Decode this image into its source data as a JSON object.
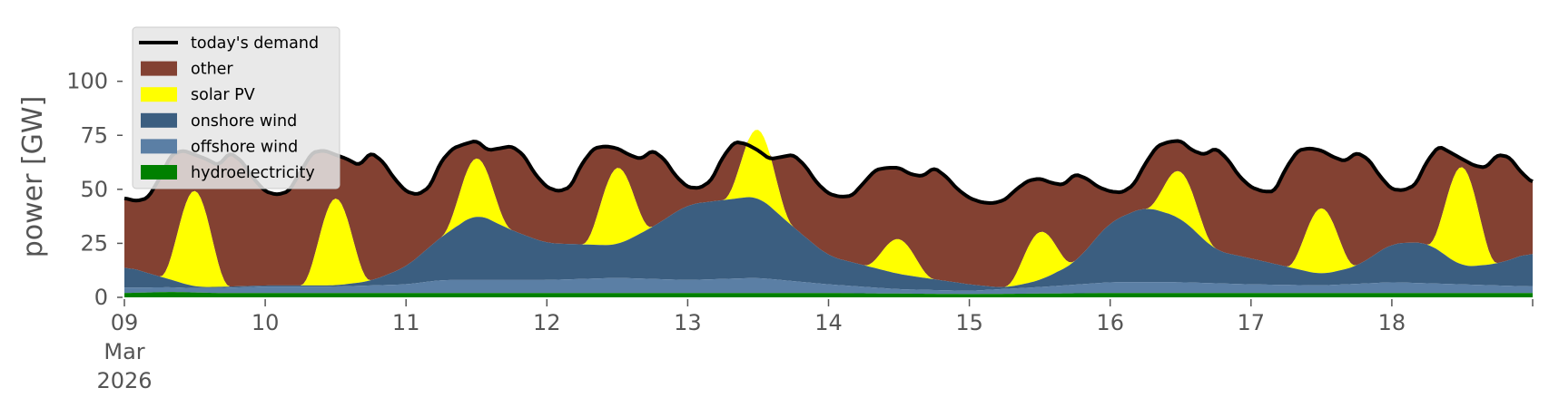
{
  "chart_data": {
    "type": "area",
    "stacked": true,
    "ylabel": "power [GW]",
    "ylim": [
      0,
      120
    ],
    "yticks": [
      0,
      25,
      50,
      75,
      100
    ],
    "xlim": [
      "2026-03-09 00:00",
      "2026-03-19 00:00"
    ],
    "xticks": [
      {
        "date": "2026-03-09",
        "label": [
          "09",
          "Mar",
          "2026"
        ]
      },
      {
        "date": "2026-03-10",
        "label": [
          "10"
        ]
      },
      {
        "date": "2026-03-11",
        "label": [
          "11"
        ]
      },
      {
        "date": "2026-03-12",
        "label": [
          "12"
        ]
      },
      {
        "date": "2026-03-13",
        "label": [
          "13"
        ]
      },
      {
        "date": "2026-03-14",
        "label": [
          "14"
        ]
      },
      {
        "date": "2026-03-15",
        "label": [
          "15"
        ]
      },
      {
        "date": "2026-03-16",
        "label": [
          "16"
        ]
      },
      {
        "date": "2026-03-17",
        "label": [
          "17"
        ]
      },
      {
        "date": "2026-03-18",
        "label": [
          "18"
        ]
      }
    ],
    "grid": false,
    "background": "#ffffff",
    "legend": {
      "placement": "top-left"
    },
    "demand": {
      "name": "today's demand",
      "color": "#000000",
      "points": [
        [
          "2026-03-09 00:00",
          46
        ],
        [
          "2026-03-09 02:00",
          44.5
        ],
        [
          "2026-03-09 04:00",
          46
        ],
        [
          "2026-03-09 06:00",
          55
        ],
        [
          "2026-03-09 08:00",
          66
        ],
        [
          "2026-03-09 10:00",
          68
        ],
        [
          "2026-03-09 12:00",
          66
        ],
        [
          "2026-03-09 14:00",
          64
        ],
        [
          "2026-03-09 16:00",
          61
        ],
        [
          "2026-03-09 18:00",
          67
        ],
        [
          "2026-03-09 20:00",
          63
        ],
        [
          "2026-03-09 22:00",
          55
        ],
        [
          "2026-03-10 00:00",
          49
        ],
        [
          "2026-03-10 02:00",
          47.5
        ],
        [
          "2026-03-10 04:00",
          49
        ],
        [
          "2026-03-10 06:00",
          58
        ],
        [
          "2026-03-10 08:00",
          67
        ],
        [
          "2026-03-10 10:00",
          68
        ],
        [
          "2026-03-10 12:00",
          66
        ],
        [
          "2026-03-10 14:00",
          64
        ],
        [
          "2026-03-10 16:00",
          61
        ],
        [
          "2026-03-10 18:00",
          67
        ],
        [
          "2026-03-10 20:00",
          63
        ],
        [
          "2026-03-10 22:00",
          55
        ],
        [
          "2026-03-11 00:00",
          49
        ],
        [
          "2026-03-11 02:00",
          47.5
        ],
        [
          "2026-03-11 04:00",
          51
        ],
        [
          "2026-03-11 06:00",
          63
        ],
        [
          "2026-03-11 08:00",
          69
        ],
        [
          "2026-03-11 10:00",
          71
        ],
        [
          "2026-03-11 12:00",
          72.5
        ],
        [
          "2026-03-11 14:00",
          68
        ],
        [
          "2026-03-11 16:00",
          69
        ],
        [
          "2026-03-11 18:00",
          70
        ],
        [
          "2026-03-11 20:00",
          66
        ],
        [
          "2026-03-11 22:00",
          57
        ],
        [
          "2026-03-12 00:00",
          51
        ],
        [
          "2026-03-12 02:00",
          49
        ],
        [
          "2026-03-12 04:00",
          51
        ],
        [
          "2026-03-12 06:00",
          62
        ],
        [
          "2026-03-12 08:00",
          69
        ],
        [
          "2026-03-12 10:00",
          70
        ],
        [
          "2026-03-12 12:00",
          69
        ],
        [
          "2026-03-12 14:00",
          66
        ],
        [
          "2026-03-12 16:00",
          64
        ],
        [
          "2026-03-12 18:00",
          68
        ],
        [
          "2026-03-12 20:00",
          64
        ],
        [
          "2026-03-12 22:00",
          56
        ],
        [
          "2026-03-13 00:00",
          51
        ],
        [
          "2026-03-13 02:00",
          50.5
        ],
        [
          "2026-03-13 04:00",
          54
        ],
        [
          "2026-03-13 06:00",
          65
        ],
        [
          "2026-03-13 08:00",
          72
        ],
        [
          "2026-03-13 10:00",
          71
        ],
        [
          "2026-03-13 12:00",
          68
        ],
        [
          "2026-03-13 14:00",
          64
        ],
        [
          "2026-03-13 16:00",
          65
        ],
        [
          "2026-03-13 18:00",
          66
        ],
        [
          "2026-03-13 20:00",
          61
        ],
        [
          "2026-03-13 22:00",
          53
        ],
        [
          "2026-03-14 00:00",
          48
        ],
        [
          "2026-03-14 02:00",
          46.5
        ],
        [
          "2026-03-14 04:00",
          47
        ],
        [
          "2026-03-14 06:00",
          53
        ],
        [
          "2026-03-14 08:00",
          59
        ],
        [
          "2026-03-14 10:00",
          60
        ],
        [
          "2026-03-14 12:00",
          60
        ],
        [
          "2026-03-14 14:00",
          57
        ],
        [
          "2026-03-14 16:00",
          56
        ],
        [
          "2026-03-14 18:00",
          60
        ],
        [
          "2026-03-14 20:00",
          56
        ],
        [
          "2026-03-14 22:00",
          50
        ],
        [
          "2026-03-15 00:00",
          46
        ],
        [
          "2026-03-15 02:00",
          44
        ],
        [
          "2026-03-15 04:00",
          43.5
        ],
        [
          "2026-03-15 06:00",
          45
        ],
        [
          "2026-03-15 08:00",
          50
        ],
        [
          "2026-03-15 10:00",
          54
        ],
        [
          "2026-03-15 12:00",
          55
        ],
        [
          "2026-03-15 14:00",
          53
        ],
        [
          "2026-03-15 16:00",
          52
        ],
        [
          "2026-03-15 18:00",
          57
        ],
        [
          "2026-03-15 20:00",
          55
        ],
        [
          "2026-03-15 22:00",
          51
        ],
        [
          "2026-03-16 00:00",
          49
        ],
        [
          "2026-03-16 02:00",
          48.5
        ],
        [
          "2026-03-16 04:00",
          52
        ],
        [
          "2026-03-16 06:00",
          62
        ],
        [
          "2026-03-16 08:00",
          70
        ],
        [
          "2026-03-16 10:00",
          72
        ],
        [
          "2026-03-16 12:00",
          72.5
        ],
        [
          "2026-03-16 14:00",
          68
        ],
        [
          "2026-03-16 16:00",
          66
        ],
        [
          "2026-03-16 18:00",
          69
        ],
        [
          "2026-03-16 20:00",
          64
        ],
        [
          "2026-03-16 22:00",
          56
        ],
        [
          "2026-03-17 00:00",
          51
        ],
        [
          "2026-03-17 02:00",
          49
        ],
        [
          "2026-03-17 04:00",
          49
        ],
        [
          "2026-03-17 06:00",
          60
        ],
        [
          "2026-03-17 08:00",
          68
        ],
        [
          "2026-03-17 10:00",
          69
        ],
        [
          "2026-03-17 12:00",
          68
        ],
        [
          "2026-03-17 14:00",
          65
        ],
        [
          "2026-03-17 16:00",
          63
        ],
        [
          "2026-03-17 18:00",
          67
        ],
        [
          "2026-03-17 20:00",
          64
        ],
        [
          "2026-03-17 22:00",
          56
        ],
        [
          "2026-03-18 00:00",
          50
        ],
        [
          "2026-03-18 02:00",
          49.5
        ],
        [
          "2026-03-18 04:00",
          52
        ],
        [
          "2026-03-18 06:00",
          63
        ],
        [
          "2026-03-18 08:00",
          70
        ],
        [
          "2026-03-18 10:00",
          67
        ],
        [
          "2026-03-18 12:00",
          64
        ],
        [
          "2026-03-18 14:00",
          61
        ],
        [
          "2026-03-18 16:00",
          60
        ],
        [
          "2026-03-18 18:00",
          66
        ],
        [
          "2026-03-18 20:00",
          65
        ],
        [
          "2026-03-18 22:00",
          58
        ],
        [
          "2026-03-19 00:00",
          53
        ]
      ]
    },
    "series": [
      {
        "name": "hydroelectricity",
        "color": "#008000",
        "points": [
          [
            "2026-03-09 00:00",
            2
          ],
          [
            "2026-03-09 08:00",
            2.5
          ],
          [
            "2026-03-09 16:00",
            2
          ],
          [
            "2026-03-10 00:00",
            2
          ],
          [
            "2026-03-11 00:00",
            2
          ],
          [
            "2026-03-12 00:00",
            2
          ],
          [
            "2026-03-13 00:00",
            2
          ],
          [
            "2026-03-14 00:00",
            2
          ],
          [
            "2026-03-15 00:00",
            1.5
          ],
          [
            "2026-03-16 00:00",
            2
          ],
          [
            "2026-03-17 00:00",
            2
          ],
          [
            "2026-03-18 00:00",
            2
          ],
          [
            "2026-03-19 00:00",
            2
          ]
        ]
      },
      {
        "name": "offshore wind",
        "color": "#5b7fa5",
        "points": [
          [
            "2026-03-09 00:00",
            2.5
          ],
          [
            "2026-03-09 12:00",
            2
          ],
          [
            "2026-03-10 00:00",
            3
          ],
          [
            "2026-03-10 12:00",
            3
          ],
          [
            "2026-03-11 00:00",
            4
          ],
          [
            "2026-03-11 06:00",
            6
          ],
          [
            "2026-03-11 12:00",
            6
          ],
          [
            "2026-03-12 00:00",
            6
          ],
          [
            "2026-03-12 12:00",
            7
          ],
          [
            "2026-03-13 00:00",
            6
          ],
          [
            "2026-03-13 12:00",
            7
          ],
          [
            "2026-03-14 00:00",
            4
          ],
          [
            "2026-03-14 12:00",
            2
          ],
          [
            "2026-03-15 00:00",
            1.5
          ],
          [
            "2026-03-15 12:00",
            3
          ],
          [
            "2026-03-16 00:00",
            5
          ],
          [
            "2026-03-16 12:00",
            5
          ],
          [
            "2026-03-17 00:00",
            4
          ],
          [
            "2026-03-17 12:00",
            3.5
          ],
          [
            "2026-03-18 00:00",
            5
          ],
          [
            "2026-03-18 12:00",
            4
          ],
          [
            "2026-03-19 00:00",
            3
          ]
        ]
      },
      {
        "name": "onshore wind",
        "color": "#3b5e80",
        "points": [
          [
            "2026-03-09 00:00",
            10
          ],
          [
            "2026-03-09 06:00",
            5
          ],
          [
            "2026-03-09 12:00",
            0.5
          ],
          [
            "2026-03-09 18:00",
            0.5
          ],
          [
            "2026-03-10 00:00",
            0.5
          ],
          [
            "2026-03-10 12:00",
            0.5
          ],
          [
            "2026-03-10 18:00",
            2
          ],
          [
            "2026-03-11 00:00",
            8
          ],
          [
            "2026-03-11 06:00",
            20
          ],
          [
            "2026-03-11 12:00",
            31
          ],
          [
            "2026-03-11 18:00",
            23
          ],
          [
            "2026-03-12 00:00",
            17
          ],
          [
            "2026-03-12 12:00",
            15
          ],
          [
            "2026-03-12 18:00",
            24
          ],
          [
            "2026-03-13 00:00",
            35
          ],
          [
            "2026-03-13 12:00",
            38
          ],
          [
            "2026-03-13 18:00",
            25
          ],
          [
            "2026-03-14 00:00",
            13
          ],
          [
            "2026-03-14 12:00",
            7
          ],
          [
            "2026-03-15 00:00",
            3
          ],
          [
            "2026-03-15 06:00",
            0.5
          ],
          [
            "2026-03-15 12:00",
            3
          ],
          [
            "2026-03-15 18:00",
            10
          ],
          [
            "2026-03-16 00:00",
            28
          ],
          [
            "2026-03-16 06:00",
            35
          ],
          [
            "2026-03-16 12:00",
            30
          ],
          [
            "2026-03-16 18:00",
            15
          ],
          [
            "2026-03-17 00:00",
            12
          ],
          [
            "2026-03-17 12:00",
            5
          ],
          [
            "2026-03-17 18:00",
            8
          ],
          [
            "2026-03-18 00:00",
            18
          ],
          [
            "2026-03-18 06:00",
            19
          ],
          [
            "2026-03-18 12:00",
            8
          ],
          [
            "2026-03-18 18:00",
            10
          ],
          [
            "2026-03-19 00:00",
            16
          ]
        ]
      },
      {
        "name": "solar PV",
        "color": "#ffff00",
        "daily_peaks_at_noon": [
          [
            "2026-03-09 12:00",
            44
          ],
          [
            "2026-03-10 12:00",
            40
          ],
          [
            "2026-03-11 12:00",
            27
          ],
          [
            "2026-03-12 12:00",
            35
          ],
          [
            "2026-03-13 12:00",
            32
          ],
          [
            "2026-03-14 12:00",
            16
          ],
          [
            "2026-03-15 12:00",
            22
          ],
          [
            "2026-03-16 12:00",
            22
          ],
          [
            "2026-03-17 12:00",
            30
          ],
          [
            "2026-03-18 12:00",
            45
          ]
        ]
      },
      {
        "name": "other",
        "color": "#834132",
        "note_filled_to": "today's demand"
      }
    ]
  }
}
